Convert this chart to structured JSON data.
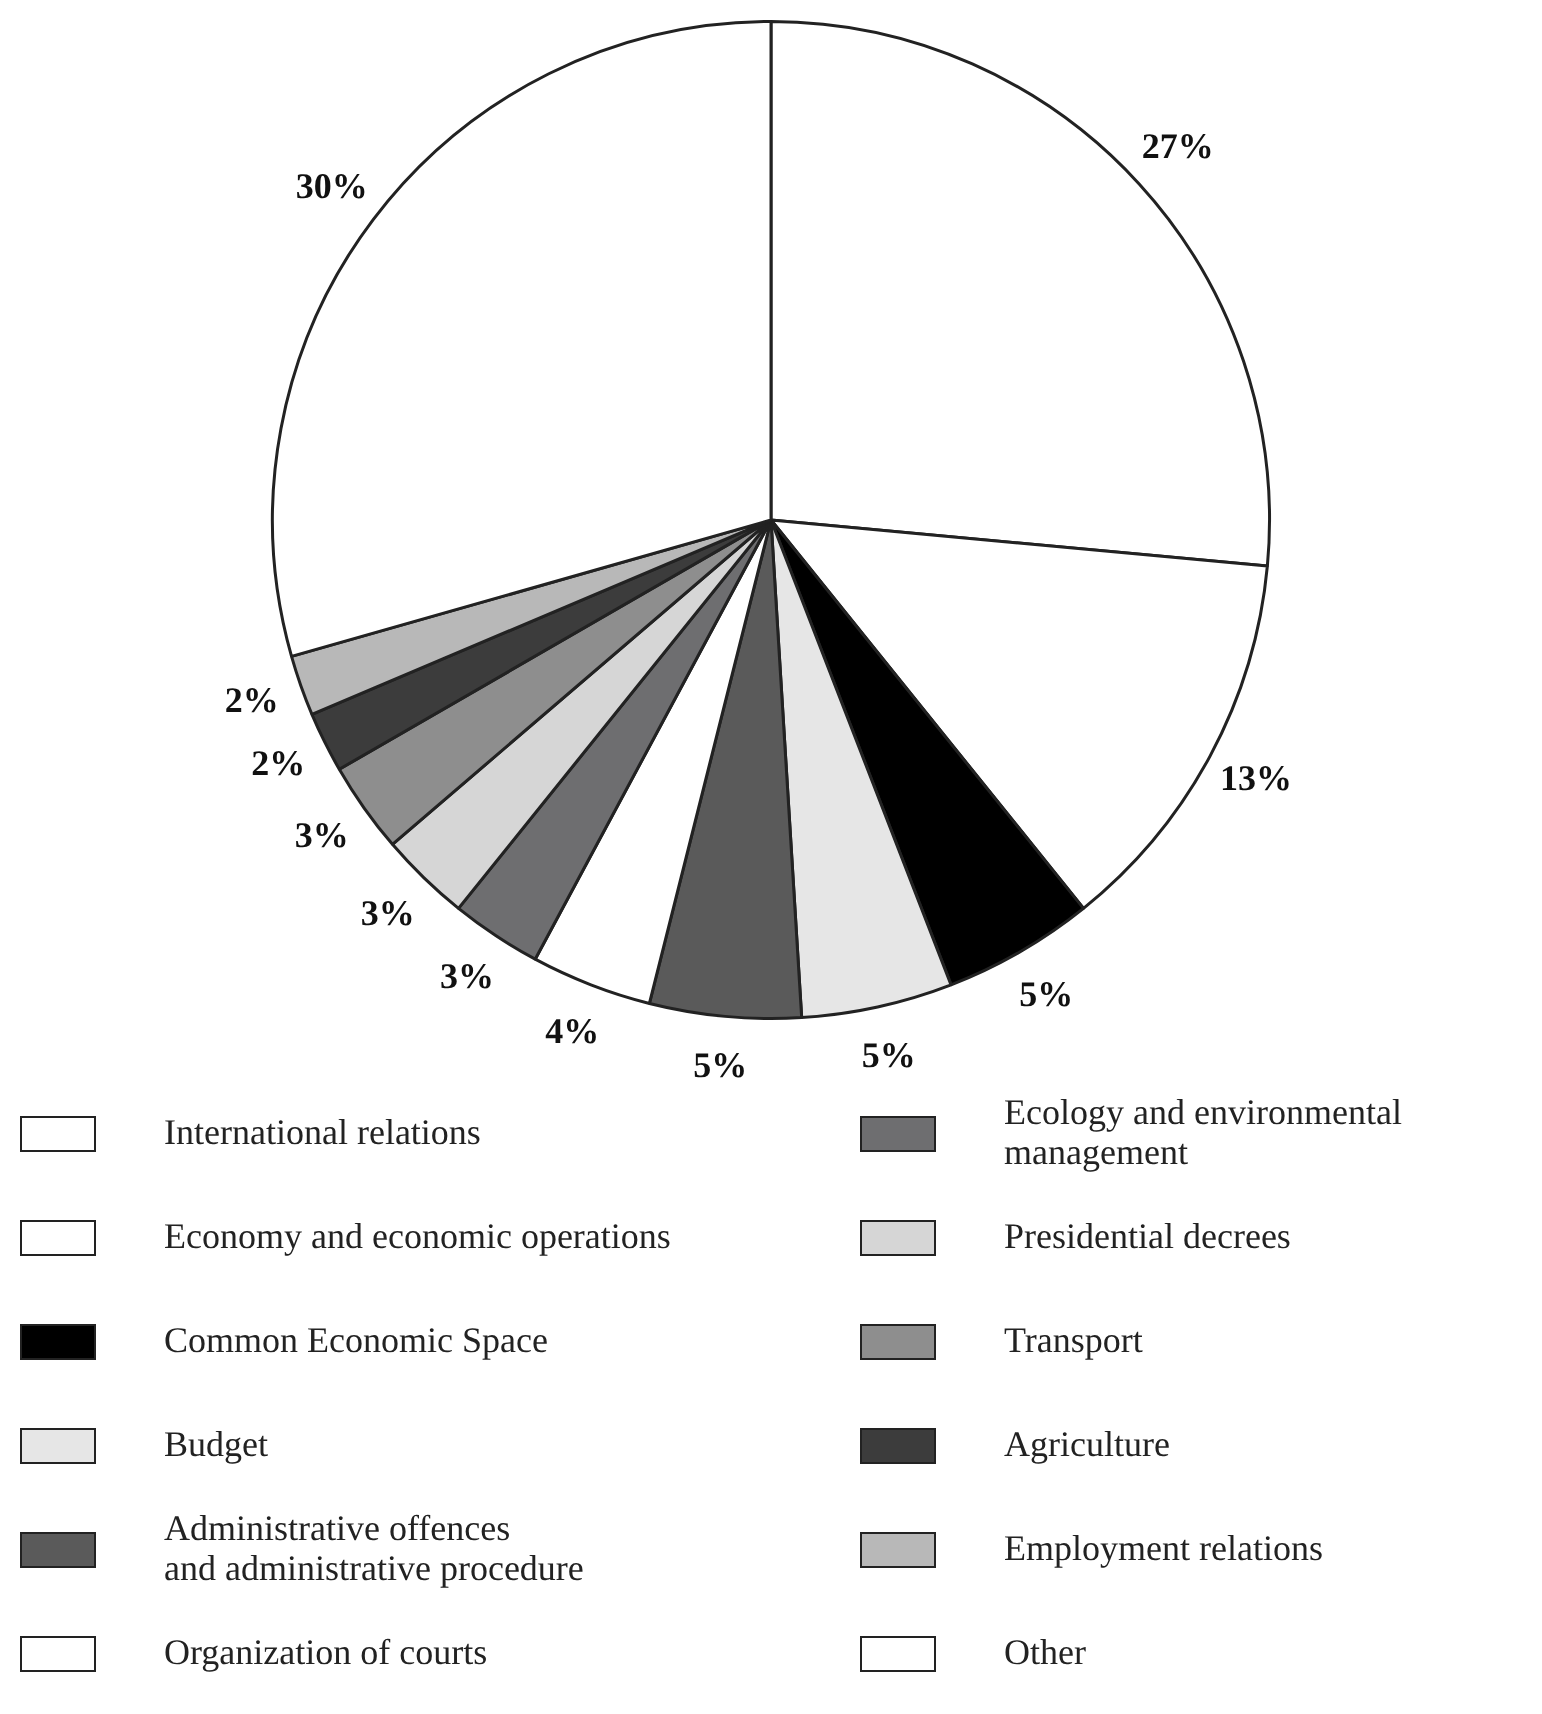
{
  "chart_data": {
    "type": "pie",
    "categories": [
      "International relations",
      "Economy and economic operations",
      "Common Economic Space",
      "Budget",
      "Administrative offences\nand administrative procedure",
      "Organization of courts",
      "Ecology and environmental\nmanagement",
      "Presidential decrees",
      "Transport",
      "Agriculture",
      "Employment relations",
      "Other"
    ],
    "values": [
      27,
      13,
      5,
      5,
      5,
      4,
      3,
      3,
      3,
      2,
      2,
      30
    ],
    "colors": [
      "#ffffff",
      "#ffffff",
      "#000000",
      "#e6e6e6",
      "#5a5a5a",
      "#ffffff",
      "#6e6e70",
      "#d6d6d6",
      "#8e8e8e",
      "#3c3c3c",
      "#b8b8b8",
      "#ffffff"
    ],
    "value_labels": [
      "27%",
      "13%",
      "5%",
      "5%",
      "5%",
      "4%",
      "3%",
      "3%",
      "3%",
      "2%",
      "2%",
      "30%"
    ],
    "legend": "bottom"
  }
}
